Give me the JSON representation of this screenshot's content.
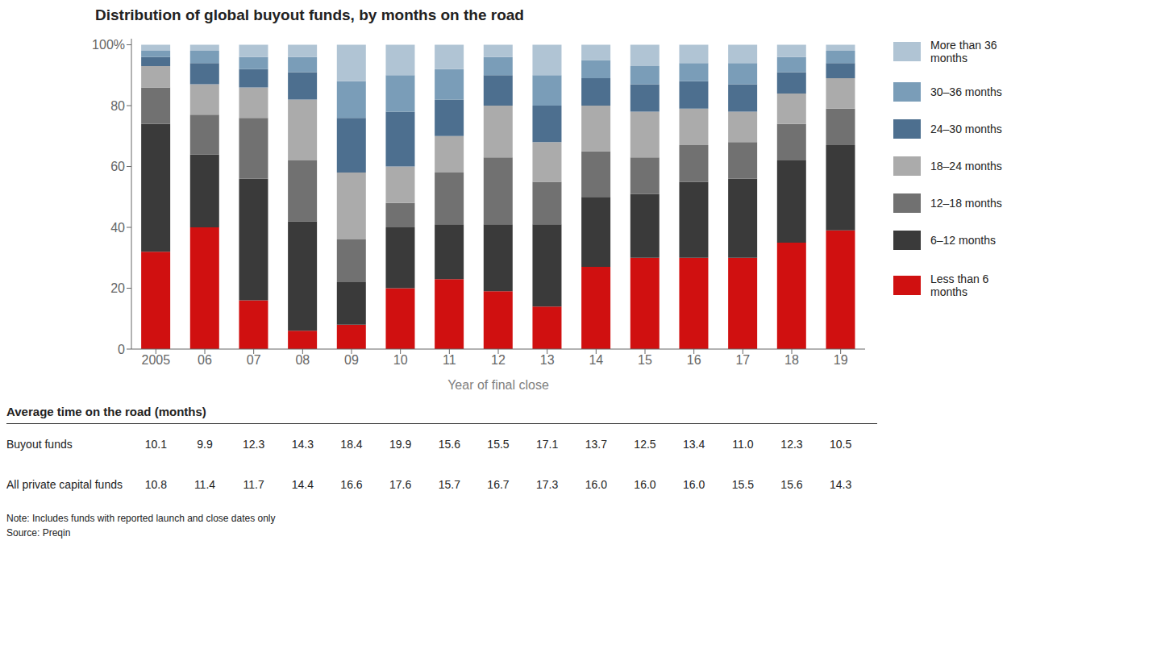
{
  "chart_data": {
    "type": "bar",
    "stacked": true,
    "title": "Distribution of global buyout funds, by months on the road",
    "xlabel": "Year of final close",
    "categories": [
      "2005",
      "06",
      "07",
      "08",
      "09",
      "10",
      "11",
      "12",
      "13",
      "14",
      "15",
      "16",
      "17",
      "18",
      "19"
    ],
    "series": [
      {
        "name": "Less than 6 months",
        "color": "#d01010",
        "values": [
          32,
          40,
          16,
          6,
          8,
          20,
          23,
          19,
          14,
          27,
          30,
          30,
          30,
          35,
          39
        ]
      },
      {
        "name": "6–12 months",
        "color": "#3a3a3a",
        "values": [
          42,
          24,
          40,
          36,
          14,
          20,
          18,
          22,
          27,
          23,
          21,
          25,
          26,
          27,
          28
        ]
      },
      {
        "name": "12–18 months",
        "color": "#717171",
        "values": [
          12,
          13,
          20,
          20,
          14,
          8,
          17,
          22,
          14,
          15,
          12,
          12,
          12,
          12,
          12
        ]
      },
      {
        "name": "18–24 months",
        "color": "#ababab",
        "values": [
          7,
          10,
          10,
          20,
          22,
          12,
          12,
          17,
          13,
          15,
          15,
          12,
          10,
          10,
          10
        ]
      },
      {
        "name": "24–30 months",
        "color": "#4d6f8f",
        "values": [
          3,
          7,
          6,
          9,
          18,
          18,
          12,
          10,
          12,
          9,
          9,
          9,
          9,
          7,
          5
        ]
      },
      {
        "name": "30–36 months",
        "color": "#7a9db8",
        "values": [
          2,
          4,
          4,
          5,
          12,
          12,
          10,
          6,
          10,
          6,
          6,
          6,
          7,
          5,
          4
        ]
      },
      {
        "name": "More than 36 months",
        "color": "#b0c4d4",
        "values": [
          2,
          2,
          4,
          4,
          12,
          10,
          8,
          4,
          10,
          5,
          7,
          6,
          6,
          4,
          2
        ]
      }
    ],
    "ylim": [
      0,
      102
    ],
    "yticks": [
      0,
      20,
      40,
      60,
      80,
      {
        "value": 100,
        "label": "100%"
      }
    ],
    "grid": false,
    "legend": "right",
    "table": {
      "title": "Average time on the road (months)",
      "rows": [
        {
          "label": "Buyout funds",
          "values": [
            10.1,
            9.9,
            12.3,
            14.3,
            18.4,
            19.9,
            15.6,
            15.5,
            17.1,
            13.7,
            12.5,
            13.4,
            11.0,
            12.3,
            10.5
          ]
        },
        {
          "label": "All private capital funds",
          "values": [
            10.8,
            11.4,
            11.7,
            14.4,
            16.6,
            17.6,
            15.7,
            16.7,
            17.3,
            16.0,
            16.0,
            16.0,
            15.5,
            15.6,
            14.3
          ]
        }
      ]
    },
    "note": "Note: Includes funds with reported launch and close dates only",
    "source": "Source: Preqin"
  }
}
